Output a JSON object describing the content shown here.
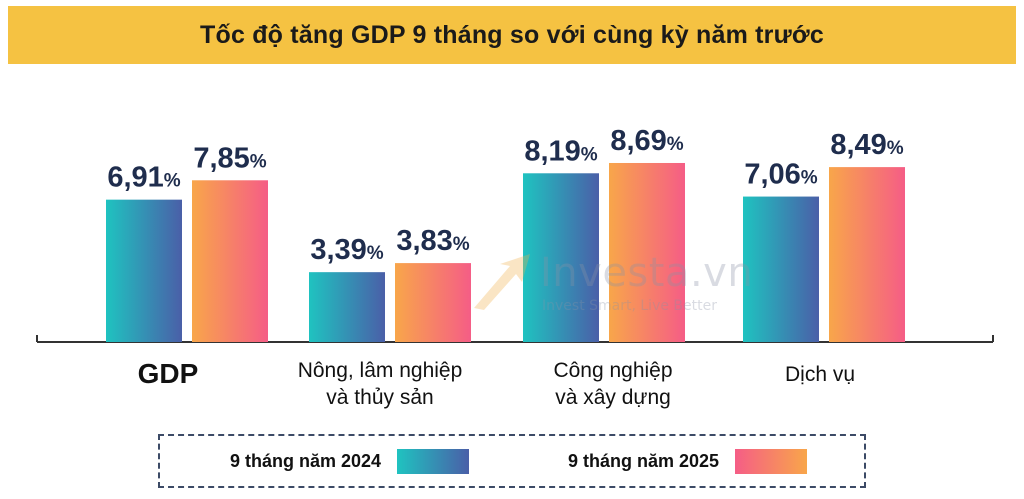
{
  "header": {
    "title": "Tốc độ tăng GDP 9 tháng so với cùng kỳ năm trước"
  },
  "watermark": {
    "name": "Investa.vn",
    "slogan": "Invest Smart, Live Better",
    "logo_icon": "investa-arrow-logo-icon"
  },
  "legend": {
    "items": [
      {
        "label": "9 tháng năm 2024",
        "gradient": [
          "#1fc3c0",
          "#4a5fa8"
        ]
      },
      {
        "label": "9 tháng năm 2025",
        "gradient": [
          "#f55d86",
          "#f8a64a"
        ]
      }
    ]
  },
  "chart_data": {
    "type": "bar",
    "title": "Tốc độ tăng GDP 9 tháng so với cùng kỳ năm trước",
    "categories": [
      [
        "GDP"
      ],
      [
        "Nông, lâm nghiệp",
        "và thủy sản"
      ],
      [
        "Công nghiệp",
        "và xây dựng"
      ],
      [
        "Dịch vụ"
      ]
    ],
    "series": [
      {
        "name": "9 tháng năm 2024",
        "values": [
          6.91,
          3.39,
          8.19,
          7.06
        ],
        "labels": [
          "6,91",
          "3,39",
          "8,19",
          "7,06"
        ]
      },
      {
        "name": "9 tháng năm 2025",
        "values": [
          7.85,
          3.83,
          8.69,
          8.49
        ],
        "labels": [
          "7,85",
          "3,83",
          "8,69",
          "8,49"
        ]
      }
    ],
    "unit": "%",
    "ylim": [
      0,
      10
    ],
    "grid": false,
    "legend_position": "bottom",
    "colors": {
      "series_2024": [
        "#1fc3c0",
        "#4a5fa8"
      ],
      "series_2025": [
        "#f8a64a",
        "#f55d86"
      ],
      "value_label": "#1f2d4d",
      "axis": "#333333"
    }
  }
}
